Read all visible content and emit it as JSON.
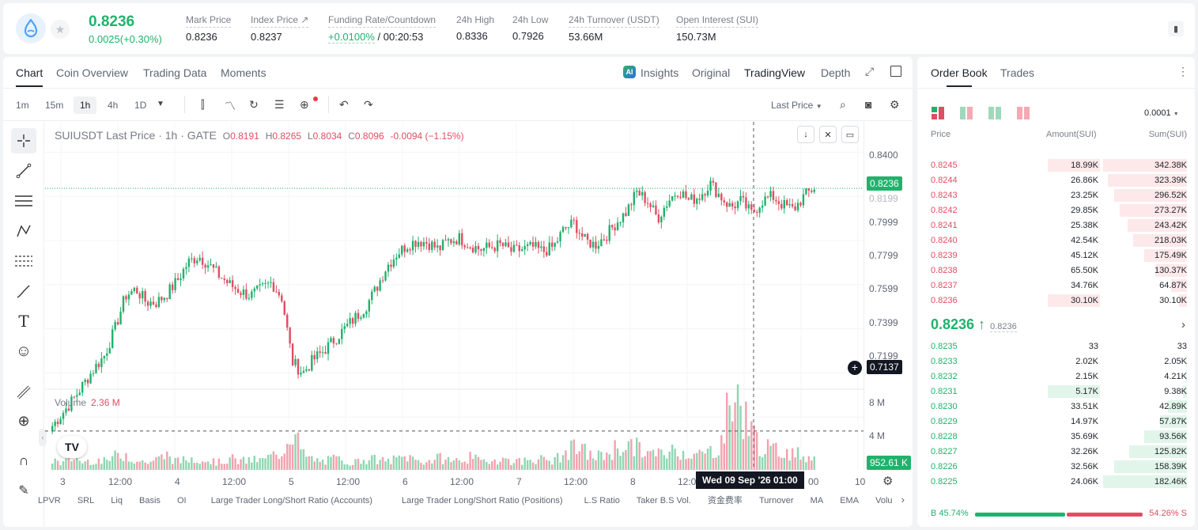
{
  "header": {
    "last_price": "0.8236",
    "change": "0.0025(+0.30%)",
    "stats": [
      {
        "label": "Mark Price",
        "value": "0.8236"
      },
      {
        "label": "Index Price ↗",
        "value": "0.8237"
      },
      {
        "label": "Funding Rate/Countdown",
        "value_green": "+0.0100%",
        "value": " / 00:20:53"
      },
      {
        "label": "24h High",
        "value": "0.8336"
      },
      {
        "label": "24h Low",
        "value": "0.7926"
      },
      {
        "label": "24h Turnover (USDT)",
        "value": "53.66M"
      },
      {
        "label": "Open Interest (SUI)",
        "value": "150.73M"
      }
    ]
  },
  "chart_tabs": [
    "Chart",
    "Coin Overview",
    "Trading Data",
    "Moments"
  ],
  "view_tabs": {
    "insights": "Insights",
    "original": "Original",
    "tradingview": "TradingView",
    "depth": "Depth",
    "ai_badge": "AI"
  },
  "timeframes": [
    "1m",
    "15m",
    "1h",
    "4h",
    "1D"
  ],
  "price_type": "Last Price",
  "legend": {
    "symbol": "SUIUSDT Last Price · 1h · GATE",
    "o": "0.8191",
    "h": "0.8265",
    "l": "0.8034",
    "c": "0.8096",
    "chg": "-0.0094 (−1.15%)"
  },
  "volume_legend": {
    "label": "Volume",
    "value": "2.36 M"
  },
  "crosshair_label": "Wed 09 Sep '26   01:00",
  "price_tags": {
    "last": "0.8236",
    "cross": "0.7137",
    "volume": "952.61 K"
  },
  "bottom_indicators": [
    "LPVR",
    "SRL",
    "Liq",
    "Basis",
    "OI",
    "Large Trader Long/Short Ratio (Accounts)",
    "Large Trader Long/Short Ratio (Positions)",
    "L.S Ratio",
    "Taker B.S Vol.",
    "资金费率",
    "Turnover",
    "MA",
    "EMA",
    "Volu"
  ],
  "chart_data": {
    "type": "candlestick",
    "title": "SUIUSDT Last Price · 1h · GATE",
    "y_ticks": [
      "0.8400",
      "0.8236",
      "0.7999",
      "0.7799",
      "0.7599",
      "0.7399",
      "0.7199",
      "0.7137"
    ],
    "volume_ticks": [
      "8 M",
      "4 M"
    ],
    "x_ticks": [
      "3",
      "12:00",
      "4",
      "12:00",
      "5",
      "12:00",
      "6",
      "12:00",
      "7",
      "12:00",
      "8",
      "12:0",
      "00",
      "10"
    ],
    "ylim": [
      0.714,
      0.843
    ],
    "close_path": [
      0.716,
      0.722,
      0.728,
      0.735,
      0.742,
      0.748,
      0.76,
      0.775,
      0.778,
      0.772,
      0.772,
      0.776,
      0.782,
      0.79,
      0.793,
      0.789,
      0.784,
      0.78,
      0.777,
      0.775,
      0.778,
      0.781,
      0.774,
      0.745,
      0.74,
      0.746,
      0.75,
      0.755,
      0.76,
      0.765,
      0.77,
      0.778,
      0.788,
      0.794,
      0.798,
      0.8,
      0.799,
      0.796,
      0.8,
      0.801,
      0.798,
      0.796,
      0.797,
      0.798,
      0.795,
      0.796,
      0.797,
      0.795,
      0.797,
      0.805,
      0.808,
      0.8,
      0.798,
      0.802,
      0.808,
      0.813,
      0.822,
      0.818,
      0.81,
      0.818,
      0.823,
      0.818,
      0.82,
      0.826,
      0.82,
      0.815,
      0.818,
      0.812,
      0.818,
      0.82,
      0.816,
      0.814,
      0.82,
      0.824
    ],
    "volume_path": [
      1.2,
      0.8,
      1.5,
      0.9,
      1.3,
      1.0,
      1.6,
      2.0,
      1.1,
      0.9,
      1.2,
      1.8,
      1.0,
      1.3,
      1.5,
      1.1,
      0.9,
      1.4,
      1.0,
      1.2,
      1.1,
      1.6,
      2.2,
      5.2,
      1.8,
      1.2,
      1.0,
      1.3,
      1.1,
      0.9,
      1.4,
      1.2,
      1.0,
      1.3,
      1.6,
      1.1,
      1.0,
      1.4,
      1.2,
      1.1,
      1.5,
      1.0,
      1.2,
      1.3,
      1.1,
      1.0,
      1.4,
      1.2,
      1.1,
      1.8,
      2.6,
      2.2,
      1.5,
      1.9,
      2.6,
      3.0,
      2.6,
      2.0,
      1.8,
      2.2,
      2.4,
      2.0,
      1.8,
      2.2,
      3.0,
      8.5,
      7.8,
      4.5,
      2.8,
      2.2,
      2.4,
      2.0,
      1.8,
      1.4
    ]
  },
  "orderbook": {
    "tabs": [
      "Order Book",
      "Trades"
    ],
    "precision": "0.0001",
    "headers": [
      "Price",
      "Amount(SUI)",
      "Sum(SUI)"
    ],
    "asks": [
      [
        "0.8245",
        "18.99K",
        "342.38K",
        0.62,
        1.0
      ],
      [
        "0.8244",
        "26.86K",
        "323.39K",
        0.0,
        0.94
      ],
      [
        "0.8243",
        "23.25K",
        "296.52K",
        0.0,
        0.87
      ],
      [
        "0.8242",
        "29.85K",
        "273.27K",
        0.0,
        0.8
      ],
      [
        "0.8241",
        "25.38K",
        "243.42K",
        0.0,
        0.71
      ],
      [
        "0.8240",
        "42.54K",
        "218.03K",
        0.0,
        0.64
      ],
      [
        "0.8239",
        "45.12K",
        "175.49K",
        0.0,
        0.51
      ],
      [
        "0.8238",
        "65.50K",
        "130.37K",
        0.0,
        0.38
      ],
      [
        "0.8237",
        "34.76K",
        "64.87K",
        0.0,
        0.19
      ],
      [
        "0.8236",
        "30.10K",
        "30.10K",
        0.62,
        0.09
      ]
    ],
    "mid_price": "0.8236 ↑",
    "mid_mark": "0.8236",
    "bids": [
      [
        "0.8235",
        "33",
        "33",
        0.0,
        0.0
      ],
      [
        "0.8233",
        "2.02K",
        "2.05K",
        0.0,
        0.01
      ],
      [
        "0.8232",
        "2.15K",
        "4.21K",
        0.0,
        0.02
      ],
      [
        "0.8231",
        "5.17K",
        "9.38K",
        0.62,
        0.05
      ],
      [
        "0.8230",
        "33.51K",
        "42.89K",
        0.0,
        0.23
      ],
      [
        "0.8229",
        "14.97K",
        "57.87K",
        0.0,
        0.32
      ],
      [
        "0.8228",
        "35.69K",
        "93.56K",
        0.0,
        0.51
      ],
      [
        "0.8227",
        "32.26K",
        "125.82K",
        0.0,
        0.69
      ],
      [
        "0.8226",
        "32.56K",
        "158.39K",
        0.0,
        0.87
      ],
      [
        "0.8225",
        "24.06K",
        "182.46K",
        0.0,
        1.0
      ]
    ],
    "buy_ratio": "B 45.74%",
    "sell_ratio": "54.26% S"
  }
}
